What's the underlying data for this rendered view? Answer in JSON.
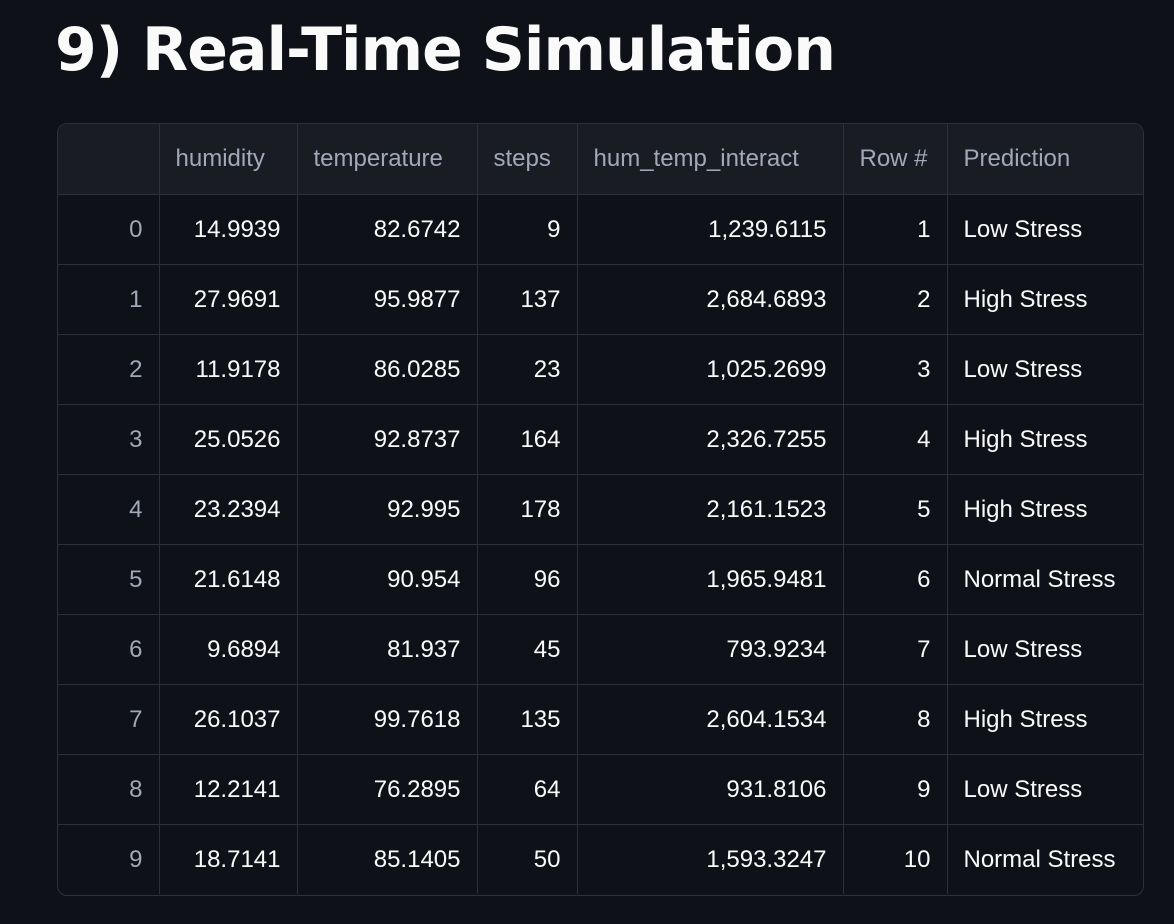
{
  "page": {
    "title": "9) Real-Time Simulation"
  },
  "table": {
    "columns": [
      "",
      "humidity",
      "temperature",
      "steps",
      "hum_temp_interact",
      "Row #",
      "Prediction"
    ],
    "rows": [
      {
        "index": "0",
        "humidity": "14.9939",
        "temperature": "82.6742",
        "steps": "9",
        "hum_temp_interact": "1,239.6115",
        "row_num": "1",
        "prediction": "Low Stress"
      },
      {
        "index": "1",
        "humidity": "27.9691",
        "temperature": "95.9877",
        "steps": "137",
        "hum_temp_interact": "2,684.6893",
        "row_num": "2",
        "prediction": "High Stress"
      },
      {
        "index": "2",
        "humidity": "11.9178",
        "temperature": "86.0285",
        "steps": "23",
        "hum_temp_interact": "1,025.2699",
        "row_num": "3",
        "prediction": "Low Stress"
      },
      {
        "index": "3",
        "humidity": "25.0526",
        "temperature": "92.8737",
        "steps": "164",
        "hum_temp_interact": "2,326.7255",
        "row_num": "4",
        "prediction": "High Stress"
      },
      {
        "index": "4",
        "humidity": "23.2394",
        "temperature": "92.995",
        "steps": "178",
        "hum_temp_interact": "2,161.1523",
        "row_num": "5",
        "prediction": "High Stress"
      },
      {
        "index": "5",
        "humidity": "21.6148",
        "temperature": "90.954",
        "steps": "96",
        "hum_temp_interact": "1,965.9481",
        "row_num": "6",
        "prediction": "Normal Stress"
      },
      {
        "index": "6",
        "humidity": "9.6894",
        "temperature": "81.937",
        "steps": "45",
        "hum_temp_interact": "793.9234",
        "row_num": "7",
        "prediction": "Low Stress"
      },
      {
        "index": "7",
        "humidity": "26.1037",
        "temperature": "99.7618",
        "steps": "135",
        "hum_temp_interact": "2,604.1534",
        "row_num": "8",
        "prediction": "High Stress"
      },
      {
        "index": "8",
        "humidity": "12.2141",
        "temperature": "76.2895",
        "steps": "64",
        "hum_temp_interact": "931.8106",
        "row_num": "9",
        "prediction": "Low Stress"
      },
      {
        "index": "9",
        "humidity": "18.7141",
        "temperature": "85.1405",
        "steps": "50",
        "hum_temp_interact": "1,593.3247",
        "row_num": "10",
        "prediction": "Normal Stress"
      }
    ]
  },
  "colors": {
    "background": "#0e1117",
    "header_background": "#1a1c24",
    "border": "#2e3038",
    "text": "#fafafa",
    "muted_text": "#a3a8b8"
  }
}
